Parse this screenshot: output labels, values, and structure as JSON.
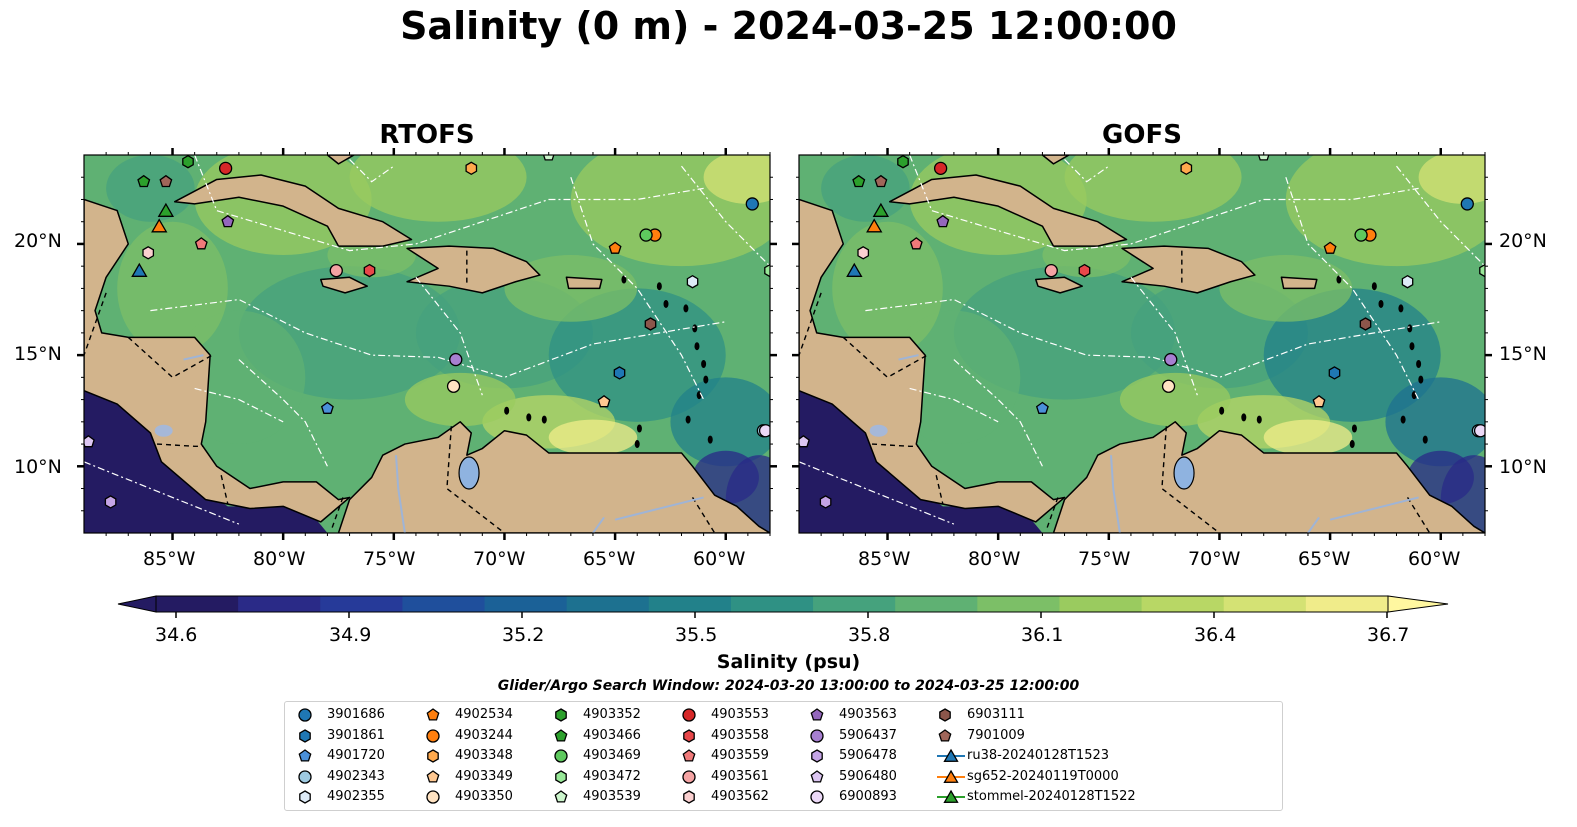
{
  "title": "Salinity (0 m) - 2024-03-25 12:00:00",
  "panels": [
    {
      "title": "RTOFS"
    },
    {
      "title": "GOFS"
    }
  ],
  "lon_ticks": [
    "85°W",
    "80°W",
    "75°W",
    "70°W",
    "65°W",
    "60°W"
  ],
  "lat_ticks": [
    "20°N",
    "15°N",
    "10°N"
  ],
  "colorbar": {
    "label": "Salinity (psu)",
    "ticks": [
      "34.6",
      "34.9",
      "35.2",
      "35.5",
      "35.8",
      "36.1",
      "36.4",
      "36.7"
    ],
    "min": 34.6,
    "max": 36.7,
    "colors": [
      "#241b62",
      "#2a2a87",
      "#263a99",
      "#1f4f9c",
      "#1b6197",
      "#1d7190",
      "#22818a",
      "#2f9184",
      "#45a27d",
      "#5fb173",
      "#7cbf67",
      "#9acb5f",
      "#b8d765",
      "#d4e274",
      "#f0ec8a"
    ]
  },
  "search_window": "Glider/Argo Search Window: 2024-03-20 13:00:00 to 2024-03-25 12:00:00",
  "legend": [
    {
      "label": "3901686",
      "marker": "circle",
      "color": "#1f77b4"
    },
    {
      "label": "3901861",
      "marker": "hexagon",
      "color": "#1f77b4"
    },
    {
      "label": "4901720",
      "marker": "pentagon",
      "color": "#4a90d9"
    },
    {
      "label": "4902343",
      "marker": "circle",
      "color": "#9ecae1"
    },
    {
      "label": "4902355",
      "marker": "hexagon",
      "color": "#deebf7"
    },
    {
      "label": "4902534",
      "marker": "pentagon",
      "color": "#ff7f0e"
    },
    {
      "label": "4903244",
      "marker": "circle",
      "color": "#ff7f0e"
    },
    {
      "label": "4903348",
      "marker": "hexagon",
      "color": "#ffa94d"
    },
    {
      "label": "4903349",
      "marker": "pentagon",
      "color": "#ffc891"
    },
    {
      "label": "4903350",
      "marker": "circle",
      "color": "#ffe3c2"
    },
    {
      "label": "4903352",
      "marker": "hexagon",
      "color": "#2ca02c"
    },
    {
      "label": "4903466",
      "marker": "pentagon",
      "color": "#2ca02c"
    },
    {
      "label": "4903469",
      "marker": "circle",
      "color": "#5ec95e"
    },
    {
      "label": "4903472",
      "marker": "hexagon",
      "color": "#98e898"
    },
    {
      "label": "4903539",
      "marker": "pentagon",
      "color": "#ccf5cc"
    },
    {
      "label": "4903553",
      "marker": "circle",
      "color": "#d62728"
    },
    {
      "label": "4903558",
      "marker": "hexagon",
      "color": "#e8474a"
    },
    {
      "label": "4903559",
      "marker": "pentagon",
      "color": "#f07a7a"
    },
    {
      "label": "4903561",
      "marker": "circle",
      "color": "#f4a3a3"
    },
    {
      "label": "4903562",
      "marker": "hexagon",
      "color": "#fbd0d0"
    },
    {
      "label": "4903563",
      "marker": "pentagon",
      "color": "#9467bd"
    },
    {
      "label": "5906437",
      "marker": "circle",
      "color": "#a77fd1"
    },
    {
      "label": "5906478",
      "marker": "hexagon",
      "color": "#c5a5e6"
    },
    {
      "label": "5906480",
      "marker": "pentagon",
      "color": "#dcc6f2"
    },
    {
      "label": "6900893",
      "marker": "circle",
      "color": "#ecd9f7"
    },
    {
      "label": "6903111",
      "marker": "hexagon",
      "color": "#8c564b"
    },
    {
      "label": "7901009",
      "marker": "pentagon",
      "color": "#a0665a"
    },
    {
      "label": "ru38-20240128T1523",
      "marker": "triangle-line",
      "color": "#1f77b4"
    },
    {
      "label": "sg652-20240119T0000",
      "marker": "triangle-line",
      "color": "#ff7f0e"
    },
    {
      "label": "stommel-20240128T1522",
      "marker": "triangle-line",
      "color": "#2ca02c"
    }
  ],
  "floats": [
    {
      "id": "3901686",
      "lon": -58.8,
      "lat": 21.8
    },
    {
      "id": "3901861",
      "lon": -64.8,
      "lat": 14.2
    },
    {
      "id": "4901720",
      "lon": -78.0,
      "lat": 12.6
    },
    {
      "id": "4902343",
      "lon": -58.3,
      "lat": 11.6
    },
    {
      "id": "4902355",
      "lon": -61.5,
      "lat": 18.3
    },
    {
      "id": "4902534",
      "lon": -65.0,
      "lat": 19.8
    },
    {
      "id": "4903244",
      "lon": -63.2,
      "lat": 20.4
    },
    {
      "id": "4903348",
      "lon": -71.5,
      "lat": 23.4
    },
    {
      "id": "4903349",
      "lon": -65.5,
      "lat": 12.9
    },
    {
      "id": "4903350",
      "lon": -72.3,
      "lat": 13.6
    },
    {
      "id": "4903352",
      "lon": -84.3,
      "lat": 23.7
    },
    {
      "id": "4903466",
      "lon": -86.3,
      "lat": 22.8
    },
    {
      "id": "4903469",
      "lon": -63.6,
      "lat": 20.4
    },
    {
      "id": "4903472",
      "lon": -58.0,
      "lat": 18.8
    },
    {
      "id": "4903539",
      "lon": -68.0,
      "lat": 24.0
    },
    {
      "id": "4903553",
      "lon": -82.6,
      "lat": 23.4
    },
    {
      "id": "4903558",
      "lon": -76.1,
      "lat": 18.8
    },
    {
      "id": "4903559",
      "lon": -83.7,
      "lat": 20.0
    },
    {
      "id": "4903561",
      "lon": -77.6,
      "lat": 18.8
    },
    {
      "id": "4903562",
      "lon": -86.1,
      "lat": 19.6
    },
    {
      "id": "4903563",
      "lon": -82.5,
      "lat": 21.0
    },
    {
      "id": "5906437",
      "lon": -72.2,
      "lat": 14.8
    },
    {
      "id": "5906478",
      "lon": -87.8,
      "lat": 8.4
    },
    {
      "id": "5906480",
      "lon": -88.8,
      "lat": 11.1
    },
    {
      "id": "6900893",
      "lon": -58.2,
      "lat": 11.6
    },
    {
      "id": "6903111",
      "lon": -63.4,
      "lat": 16.4
    },
    {
      "id": "7901009",
      "lon": -85.3,
      "lat": 22.8
    }
  ],
  "gliders": [
    {
      "id": "ru38-20240128T1523",
      "lon": -86.5,
      "lat": 18.8
    },
    {
      "id": "sg652-20240119T0000",
      "lon": -85.6,
      "lat": 20.8
    },
    {
      "id": "stommel-20240128T1522",
      "lon": -85.3,
      "lat": 21.5
    }
  ]
}
